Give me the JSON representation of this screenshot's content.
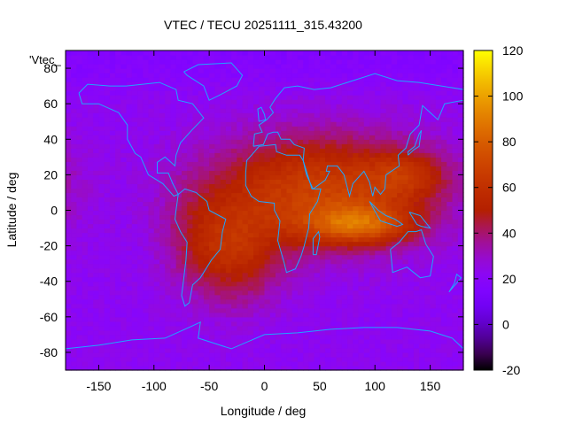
{
  "chart_data": {
    "type": "heatmap",
    "title": "VTEC / TECU 20251111_315.43200",
    "xlabel": "Longitude / deg",
    "ylabel": "Latitude / deg",
    "series_label": "'Vtec_",
    "xlim": [
      -180,
      180
    ],
    "ylim": [
      -90,
      90
    ],
    "x_ticks": [
      -150,
      -100,
      -50,
      0,
      50,
      100,
      150
    ],
    "y_ticks": [
      -80,
      -60,
      -40,
      -20,
      0,
      20,
      40,
      60,
      80
    ],
    "colorbar": {
      "min": -20,
      "max": 120,
      "ticks": [
        -20,
        0,
        20,
        40,
        60,
        80,
        100,
        120
      ]
    },
    "grid": {
      "lon_step": 5,
      "lat_step": 2.5
    },
    "field_model": {
      "background_tecu": 22,
      "blobs": [
        {
          "lon": 50,
          "lat": 12,
          "amp": 45,
          "sigma_lon": 70,
          "sigma_lat": 22
        },
        {
          "lon": 85,
          "lat": -8,
          "amp": 42,
          "sigma_lon": 35,
          "sigma_lat": 8
        },
        {
          "lon": 130,
          "lat": 20,
          "amp": 22,
          "sigma_lon": 25,
          "sigma_lat": 10
        },
        {
          "lon": -25,
          "lat": -25,
          "amp": 28,
          "sigma_lon": 30,
          "sigma_lat": 20
        },
        {
          "lon": -60,
          "lat": -15,
          "amp": 12,
          "sigma_lon": 25,
          "sigma_lat": 20
        }
      ]
    },
    "colors": {
      "map_outline": "#1ea6ff",
      "axis": "#000000"
    }
  }
}
